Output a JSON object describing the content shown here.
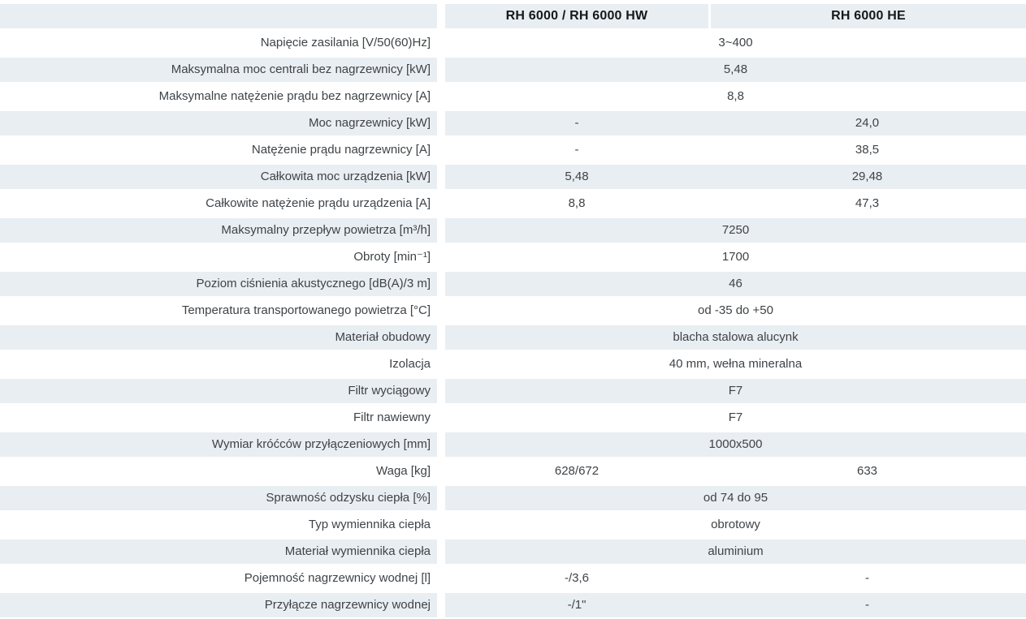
{
  "colors": {
    "row_shade": "#e9eef2",
    "body_text": "#3f4347",
    "header_text": "#16181a",
    "background": "#ffffff"
  },
  "table": {
    "header": {
      "label_cell": "",
      "columns": [
        "RH 6000 / RH 6000 HW",
        "RH 6000 HE"
      ]
    },
    "rows": [
      {
        "label": "Napięcie zasilania [V/50(60)Hz]",
        "value": "3~400"
      },
      {
        "label": "Maksymalna moc centrali bez nagrzewnicy [kW]",
        "value": "5,48"
      },
      {
        "label": "Maksymalne natężenie prądu bez nagrzewnicy [A]",
        "value": "8,8"
      },
      {
        "label": "Moc nagrzewnicy [kW]",
        "values": [
          "-",
          "24,0"
        ]
      },
      {
        "label": "Natężenie prądu nagrzewnicy [A]",
        "values": [
          "-",
          "38,5"
        ]
      },
      {
        "label": "Całkowita moc urządzenia [kW]",
        "values": [
          "5,48",
          "29,48"
        ]
      },
      {
        "label": "Całkowite natężenie prądu urządzenia [A]",
        "values": [
          "8,8",
          "47,3"
        ]
      },
      {
        "label": "Maksymalny przepływ powietrza [m³/h]",
        "value": "7250"
      },
      {
        "label": "Obroty [min⁻¹]",
        "value": "1700"
      },
      {
        "label": "Poziom ciśnienia akustycznego [dB(A)/3 m]",
        "value": "46"
      },
      {
        "label": "Temperatura transportowanego powietrza [°C]",
        "value": "od -35 do +50"
      },
      {
        "label": "Materiał obudowy",
        "value": "blacha stalowa alucynk"
      },
      {
        "label": "Izolacja",
        "value": "40 mm, wełna mineralna"
      },
      {
        "label": "Filtr wyciągowy",
        "value": "F7"
      },
      {
        "label": "Filtr nawiewny",
        "value": "F7"
      },
      {
        "label": "Wymiar króćców przyłączeniowych [mm]",
        "value": "1000x500"
      },
      {
        "label": "Waga [kg]",
        "values": [
          "628/672",
          "633"
        ]
      },
      {
        "label": "Sprawność odzysku ciepła [%]",
        "value": "od 74 do 95"
      },
      {
        "label": "Typ wymiennika ciepła",
        "value": "obrotowy"
      },
      {
        "label": "Materiał wymiennika ciepła",
        "value": "aluminium"
      },
      {
        "label": "Pojemność nagrzewnicy wodnej [l]",
        "values": [
          "-/3,6",
          "-"
        ]
      },
      {
        "label": "Przyłącze nagrzewnicy wodnej",
        "values": [
          "-/1\"",
          "-"
        ]
      }
    ]
  }
}
